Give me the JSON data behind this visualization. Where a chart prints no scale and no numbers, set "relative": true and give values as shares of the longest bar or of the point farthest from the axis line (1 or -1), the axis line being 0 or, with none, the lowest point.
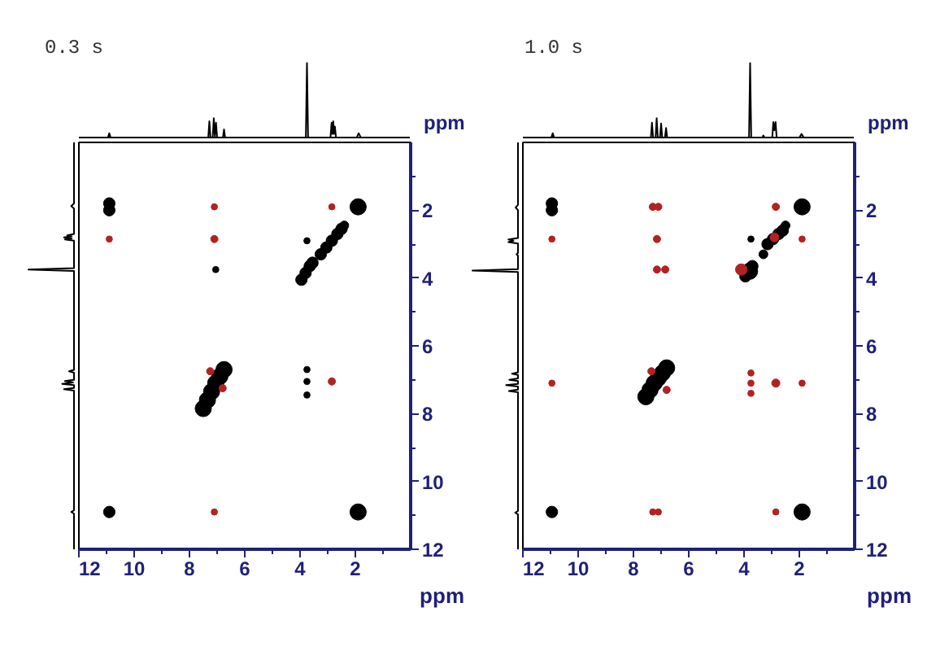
{
  "chart_data": [
    {
      "type": "line",
      "title": "0.3 s",
      "xlabel": "ppm",
      "relative": true,
      "color": "#000000",
      "xlim": [
        12,
        0
      ],
      "tick_labels": false,
      "x": [
        12,
        10.95,
        10.9,
        10.85,
        7.32,
        7.28,
        7.24,
        7.16,
        7.12,
        7.08,
        7.04,
        7.0,
        6.79,
        6.75,
        6.71,
        3.79,
        3.75,
        3.71,
        2.9,
        2.86,
        2.83,
        2.8,
        2.77,
        2.74,
        2.7,
        1.95,
        1.88,
        1.8,
        0
      ],
      "values": [
        0,
        0,
        0.06,
        0,
        0,
        0.22,
        0,
        0,
        0.26,
        0.02,
        0.2,
        0,
        0,
        0.11,
        0,
        0,
        1,
        0,
        0,
        0.2,
        0.05,
        0.22,
        0.05,
        0.15,
        0,
        0,
        0.06,
        0,
        0
      ]
    },
    {
      "type": "bubble",
      "xlabel": "ppm",
      "marker": "circle",
      "xlim": [
        12,
        0
      ],
      "ylim": [
        12,
        0
      ],
      "xticks": [
        12,
        {
          "value": 11,
          "label": null
        },
        10,
        {
          "value": 9,
          "label": null
        },
        8,
        {
          "value": 7,
          "label": null
        },
        6,
        {
          "value": 5,
          "label": null
        },
        4,
        {
          "value": 3,
          "label": null
        },
        2,
        {
          "value": 1,
          "label": null
        }
      ],
      "yticks": [
        {
          "value": 1,
          "label": null
        },
        2,
        {
          "value": 3,
          "label": null
        },
        4,
        {
          "value": 5,
          "label": null
        },
        6,
        {
          "value": 7,
          "label": null
        },
        8,
        {
          "value": 9,
          "label": null
        },
        10,
        {
          "value": 11,
          "label": null
        },
        12
      ],
      "series": [
        {
          "color": "#000000",
          "x": [
            1.9,
            10.9,
            10.9,
            3.25,
            3.05,
            2.85,
            2.65,
            2.5,
            2.4,
            3.95,
            3.8,
            3.65,
            3.55,
            7.5,
            7.35,
            7.2,
            7.05,
            6.9,
            6.75,
            10.9,
            1.9,
            3.75,
            7.05,
            3.75,
            3.75,
            3.75
          ],
          "values": [
            1.9,
            1.8,
            2.0,
            3.3,
            3.1,
            2.9,
            2.7,
            2.55,
            2.45,
            4.05,
            3.85,
            3.65,
            3.55,
            7.85,
            7.6,
            7.35,
            7.1,
            6.9,
            6.7,
            10.9,
            10.9,
            2.9,
            3.75,
            6.7,
            7.05,
            7.45
          ],
          "sizes": [
            1,
            0.5,
            0.5,
            0.5,
            0.5,
            0.5,
            0.5,
            0.5,
            0.3,
            0.5,
            0.5,
            0.5,
            0.5,
            1,
            1,
            1,
            1,
            1,
            1,
            0.5,
            1,
            0.15,
            0.15,
            0.15,
            0.15,
            0.15
          ]
        },
        {
          "color": "#b22222",
          "x": [
            7.1,
            2.85,
            10.9,
            7.1,
            2.85,
            6.8,
            7.25,
            7.1
          ],
          "values": [
            1.9,
            1.9,
            2.85,
            2.85,
            7.05,
            7.25,
            6.75,
            10.9
          ],
          "sizes": [
            0.15,
            0.15,
            0.15,
            0.2,
            0.2,
            0.2,
            0.2,
            0.15
          ]
        }
      ]
    },
    {
      "type": "line",
      "title": "1.0 s",
      "xlabel": "ppm",
      "relative": true,
      "color": "#000000",
      "xlim": [
        12,
        0
      ],
      "tick_labels": false,
      "x": [
        12,
        10.97,
        10.92,
        10.87,
        7.37,
        7.33,
        7.29,
        7.2,
        7.16,
        7.12,
        7.04,
        7.0,
        6.96,
        6.86,
        6.82,
        6.78,
        3.82,
        3.78,
        3.74,
        3.34,
        3.3,
        3.26,
        2.98,
        2.94,
        2.9,
        2.86,
        2.82,
        2.0,
        1.92,
        1.84,
        0
      ],
      "values": [
        0,
        0,
        0.06,
        0,
        0,
        0.2,
        0,
        0,
        0.26,
        0,
        0,
        0.19,
        0,
        0,
        0.13,
        0,
        0,
        1,
        0,
        0,
        0.03,
        0,
        0,
        0.21,
        0.1,
        0.21,
        0,
        0,
        0.05,
        0,
        0
      ]
    },
    {
      "type": "bubble",
      "xlabel": "ppm",
      "marker": "circle",
      "xlim": [
        12,
        0
      ],
      "ylim": [
        12,
        0
      ],
      "xticks": [
        12,
        {
          "value": 11,
          "label": null
        },
        10,
        {
          "value": 9,
          "label": null
        },
        8,
        {
          "value": 7,
          "label": null
        },
        6,
        {
          "value": 5,
          "label": null
        },
        4,
        {
          "value": 3,
          "label": null
        },
        2,
        {
          "value": 1,
          "label": null
        }
      ],
      "yticks": [
        {
          "value": 1,
          "label": null
        },
        2,
        {
          "value": 3,
          "label": null
        },
        4,
        {
          "value": 5,
          "label": null
        },
        6,
        {
          "value": 7,
          "label": null
        },
        8,
        {
          "value": 9,
          "label": null
        },
        10,
        {
          "value": 11,
          "label": null
        },
        12
      ],
      "series": [
        {
          "color": "#000000",
          "x": [
            1.9,
            10.95,
            10.95,
            3.3,
            3.15,
            2.95,
            2.75,
            2.6,
            2.5,
            3.95,
            3.8,
            3.7,
            7.55,
            7.4,
            7.25,
            7.1,
            6.95,
            6.8,
            10.95,
            1.9,
            3.75
          ],
          "values": [
            1.9,
            1.8,
            2.0,
            3.3,
            3.0,
            2.85,
            2.7,
            2.6,
            2.45,
            3.95,
            3.8,
            3.65,
            7.5,
            7.3,
            7.1,
            6.95,
            6.8,
            6.65,
            10.9,
            10.9,
            2.85
          ],
          "sizes": [
            1,
            0.5,
            0.5,
            0.3,
            0.5,
            0.5,
            0.5,
            0.5,
            0.3,
            0.5,
            1,
            0.5,
            1,
            1,
            1,
            1,
            1,
            1,
            0.5,
            1,
            0.15
          ]
        },
        {
          "color": "#b22222",
          "x": [
            7.3,
            7.1,
            2.85,
            10.95,
            7.15,
            1.9,
            7.15,
            6.85,
            4.1,
            2.9,
            10.95,
            7.35,
            6.8,
            3.75,
            3.75,
            3.75,
            2.85,
            1.9,
            7.3,
            7.1,
            2.85
          ],
          "values": [
            1.9,
            1.9,
            1.9,
            2.85,
            2.85,
            2.85,
            3.75,
            3.75,
            3.75,
            2.8,
            7.1,
            6.75,
            7.3,
            6.8,
            7.1,
            7.4,
            7.1,
            7.1,
            10.9,
            10.9,
            10.9
          ],
          "sizes": [
            0.2,
            0.2,
            0.2,
            0.15,
            0.2,
            0.15,
            0.2,
            0.2,
            0.5,
            0.3,
            0.15,
            0.2,
            0.2,
            0.15,
            0.15,
            0.15,
            0.25,
            0.15,
            0.15,
            0.15,
            0.15
          ]
        }
      ]
    }
  ]
}
